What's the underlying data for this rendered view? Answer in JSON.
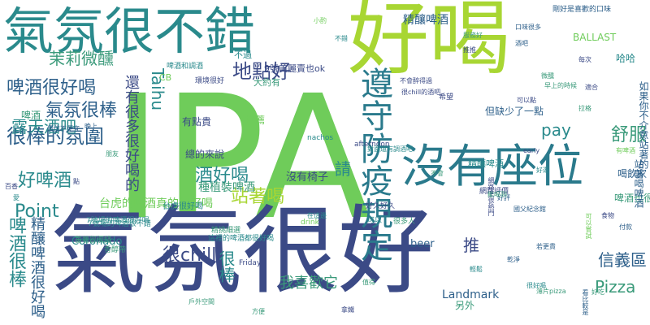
{
  "words": [
    {
      "text": "IPA",
      "color": "#6fcc5a"
    },
    {
      "text": "氣氛很好",
      "color": "#3b4a86"
    },
    {
      "text": "好喝",
      "color": "#a8d633"
    },
    {
      "text": "氣氛很不錯",
      "color": "#2a8a8c"
    },
    {
      "text": "沒有座位",
      "color": "#2a7a8c"
    },
    {
      "text": "地點好",
      "color": "#3b4a86"
    },
    {
      "text": "啤酒很好喝",
      "color": "#2d5f8a"
    },
    {
      "text": "很棒的氛圍",
      "color": "#2d5f8a"
    },
    {
      "text": "好啤酒",
      "color": "#2a8a8c"
    },
    {
      "text": "氣氛很棒",
      "color": "#2d5f8a"
    },
    {
      "text": "露天酒吧",
      "color": "#2a8a8c"
    },
    {
      "text": "茉莉微醺",
      "color": "#3a9a7a"
    },
    {
      "text": "Taihu",
      "color": "#2a8a8c"
    },
    {
      "text": "遵守防疫規定",
      "color": "#2a7a8c"
    },
    {
      "text": "請",
      "color": "#2a8a8c"
    },
    {
      "text": "精釀啤酒",
      "color": "#2d5f8a"
    },
    {
      "text": "精釀啤酒很好喝",
      "color": "#2d5f8a"
    },
    {
      "text": "啤酒很棒",
      "color": "#2a8a8c"
    },
    {
      "text": "Point",
      "color": "#2a8a8c"
    },
    {
      "text": "pay",
      "color": "#2a8a8c"
    },
    {
      "text": "舒服",
      "color": "#3a9a7a"
    },
    {
      "text": "信義區",
      "color": "#2d5f8a"
    },
    {
      "text": "Pizza",
      "color": "#3a9a7a"
    },
    {
      "text": "站著喝",
      "color": "#a8d633"
    },
    {
      "text": "酒好喝",
      "color": "#2a8a8c"
    },
    {
      "text": "很chill",
      "color": "#3b4a86"
    },
    {
      "text": "推",
      "color": "#3b4a86"
    },
    {
      "text": "很棒",
      "color": "#2a8a8c"
    },
    {
      "text": "我喜歡它",
      "color": "#3a9a7a"
    },
    {
      "text": "Landmark",
      "color": "#2d5f8a"
    },
    {
      "text": "beer",
      "color": "#2d5f8a"
    },
    {
      "text": "Coronado",
      "color": "#2a8a8c"
    },
    {
      "text": "台虎的啤酒真的很好喝",
      "color": "#6fcc5a"
    },
    {
      "text": "還有很多很好喝的",
      "color": "#3b4a86"
    },
    {
      "text": "BALLAST",
      "color": "#6fcc5a"
    },
    {
      "text": "但缺少了一點",
      "color": "#2d5f8a"
    },
    {
      "text": "哈哈",
      "color": "#2a8a8c"
    },
    {
      "text": "啤酒也很棒",
      "color": "#3a9a7a"
    },
    {
      "text": "喝飲家",
      "color": "#2d5f8a"
    },
    {
      "text": "站著喝啤酒",
      "color": "#2d5f8a"
    },
    {
      "text": "種植裝啤酒",
      "color": "#3a9a7a"
    },
    {
      "text": "沒有椅子",
      "color": "#3b4a86"
    },
    {
      "text": "有點貴",
      "color": "#3b4a86"
    },
    {
      "text": "推薦",
      "color": "#6fcc5a"
    },
    {
      "text": "總的來說",
      "color": "#3b4a86"
    },
    {
      "text": "另外",
      "color": "#3a9a7a"
    },
    {
      "text": "不過",
      "color": "#2a8a8c"
    },
    {
      "text": "大約有",
      "color": "#3a9a7a"
    },
    {
      "text": "精釀啤酒",
      "color": "#2a8a8c"
    },
    {
      "text": "9號美麗賣也ok",
      "color": "#3b4a86"
    },
    {
      "text": "如果你不介意站著的",
      "color": "#2d5f8a"
    },
    {
      "text": "啤酒",
      "color": "#3a9a7a"
    },
    {
      "text": "CB",
      "color": "#6fcc5a"
    },
    {
      "text": "剛好是喜歡的口味",
      "color": "#2d5f8a"
    },
    {
      "text": "好久好久",
      "color": "#3b4a86"
    },
    {
      "text": "精挑細選",
      "color": "#3a9a7a"
    },
    {
      "text": "台虎很好喝",
      "color": "#2a8a8c"
    },
    {
      "text": "7號場的啤酒很好喝",
      "color": "#2a8a8c"
    },
    {
      "text": "希望",
      "color": "#3b4a86"
    },
    {
      "text": "香醇帶",
      "color": "#3a9a7a"
    },
    {
      "text": "環境很好",
      "color": "#3b4a86"
    },
    {
      "text": "啤酒和調酒",
      "color": "#2a8a8c"
    },
    {
      "text": "早上的時候",
      "color": "#3a9a7a"
    },
    {
      "text": "價位不便宜",
      "color": "#2d5f8a"
    },
    {
      "text": "這裡的啤酒都很好喝",
      "color": "#2a8a8c"
    },
    {
      "text": "7號場的啤酒很不錯",
      "color": "#2a8a8c"
    },
    {
      "text": "蕃薯部價錢",
      "color": "#3a9a7a"
    },
    {
      "text": "網路上很熱門",
      "color": "#3b4a86"
    },
    {
      "text": "網路評價",
      "color": "#3b4a86"
    },
    {
      "text": "很多人",
      "color": "#3a9a7a"
    },
    {
      "text": "在這邊",
      "color": "#2a8a8c"
    },
    {
      "text": "afternoon",
      "color": "#3b4a86"
    },
    {
      "text": "Friday",
      "color": "#3b4a86"
    },
    {
      "text": "early",
      "color": "#3b4a86"
    },
    {
      "text": "drink",
      "color": "#6fcc5a"
    },
    {
      "text": "nachos",
      "color": "#2a8a8c"
    },
    {
      "text": "不會",
      "color": "#3a9a7a"
    },
    {
      "text": "拿鐵",
      "color": "#3b4a86"
    },
    {
      "text": "拉格",
      "color": "#3a9a7a"
    },
    {
      "text": "可以",
      "color": "#2a8a8c"
    },
    {
      "text": "好評",
      "color": "#2d5f8a"
    },
    {
      "text": "付款",
      "color": "#2d5f8a"
    },
    {
      "text": "戶外空間",
      "color": "#3a9a7a"
    },
    {
      "text": "很chill的酒吧",
      "color": "#3b4a86"
    },
    {
      "text": "不會醉得過",
      "color": "#3b4a86"
    },
    {
      "text": "對面還有調酒吧",
      "color": "#2a8a8c"
    },
    {
      "text": "國父紀念館",
      "color": "#2d5f8a"
    },
    {
      "text": "可以嘗試",
      "color": "#6fcc5a"
    },
    {
      "text": "若更貴",
      "color": "#2d5f8a"
    },
    {
      "text": "食物",
      "color": "#3b4a86"
    },
    {
      "text": "薄片pizza",
      "color": "#3a9a7a"
    },
    {
      "text": "看比較是",
      "color": "#2d5f8a"
    },
    {
      "text": "很好喝",
      "color": "#2a8a8c"
    },
    {
      "text": "能喝到",
      "color": "#3a9a7a"
    },
    {
      "text": "輕鬆",
      "color": "#2a8a8c"
    },
    {
      "text": "可以點",
      "color": "#3b4a86"
    },
    {
      "text": "適合",
      "color": "#3b4a86"
    },
    {
      "text": "口味很多",
      "color": "#2d5f8a"
    },
    {
      "text": "服務好",
      "color": "#3a9a7a"
    },
    {
      "text": "有啤酒",
      "color": "#6fcc5a"
    },
    {
      "text": "每次",
      "color": "#3b4a86"
    },
    {
      "text": "好吃",
      "color": "#3a9a7a"
    },
    {
      "text": "百香",
      "color": "#3b4a86"
    },
    {
      "text": "愛",
      "color": "#2a8a8c"
    },
    {
      "text": "晚上",
      "color": "#2d5f8a"
    },
    {
      "text": "朋友",
      "color": "#3a9a7a"
    },
    {
      "text": "點",
      "color": "#3b4a86"
    },
    {
      "text": "小酌",
      "color": "#6fcc5a"
    },
    {
      "text": "不錯",
      "color": "#2a8a8c"
    },
    {
      "text": "值得",
      "color": "#3a9a7a"
    },
    {
      "text": "酒吧",
      "color": "#2d5f8a"
    },
    {
      "text": "推推",
      "color": "#3b4a86"
    },
    {
      "text": "微醺",
      "color": "#3a9a7a"
    },
    {
      "text": "好逛",
      "color": "#2a8a8c"
    },
    {
      "text": "乾淨",
      "color": "#2d5f8a"
    },
    {
      "text": "方便",
      "color": "#3a9a7a"
    }
  ]
}
